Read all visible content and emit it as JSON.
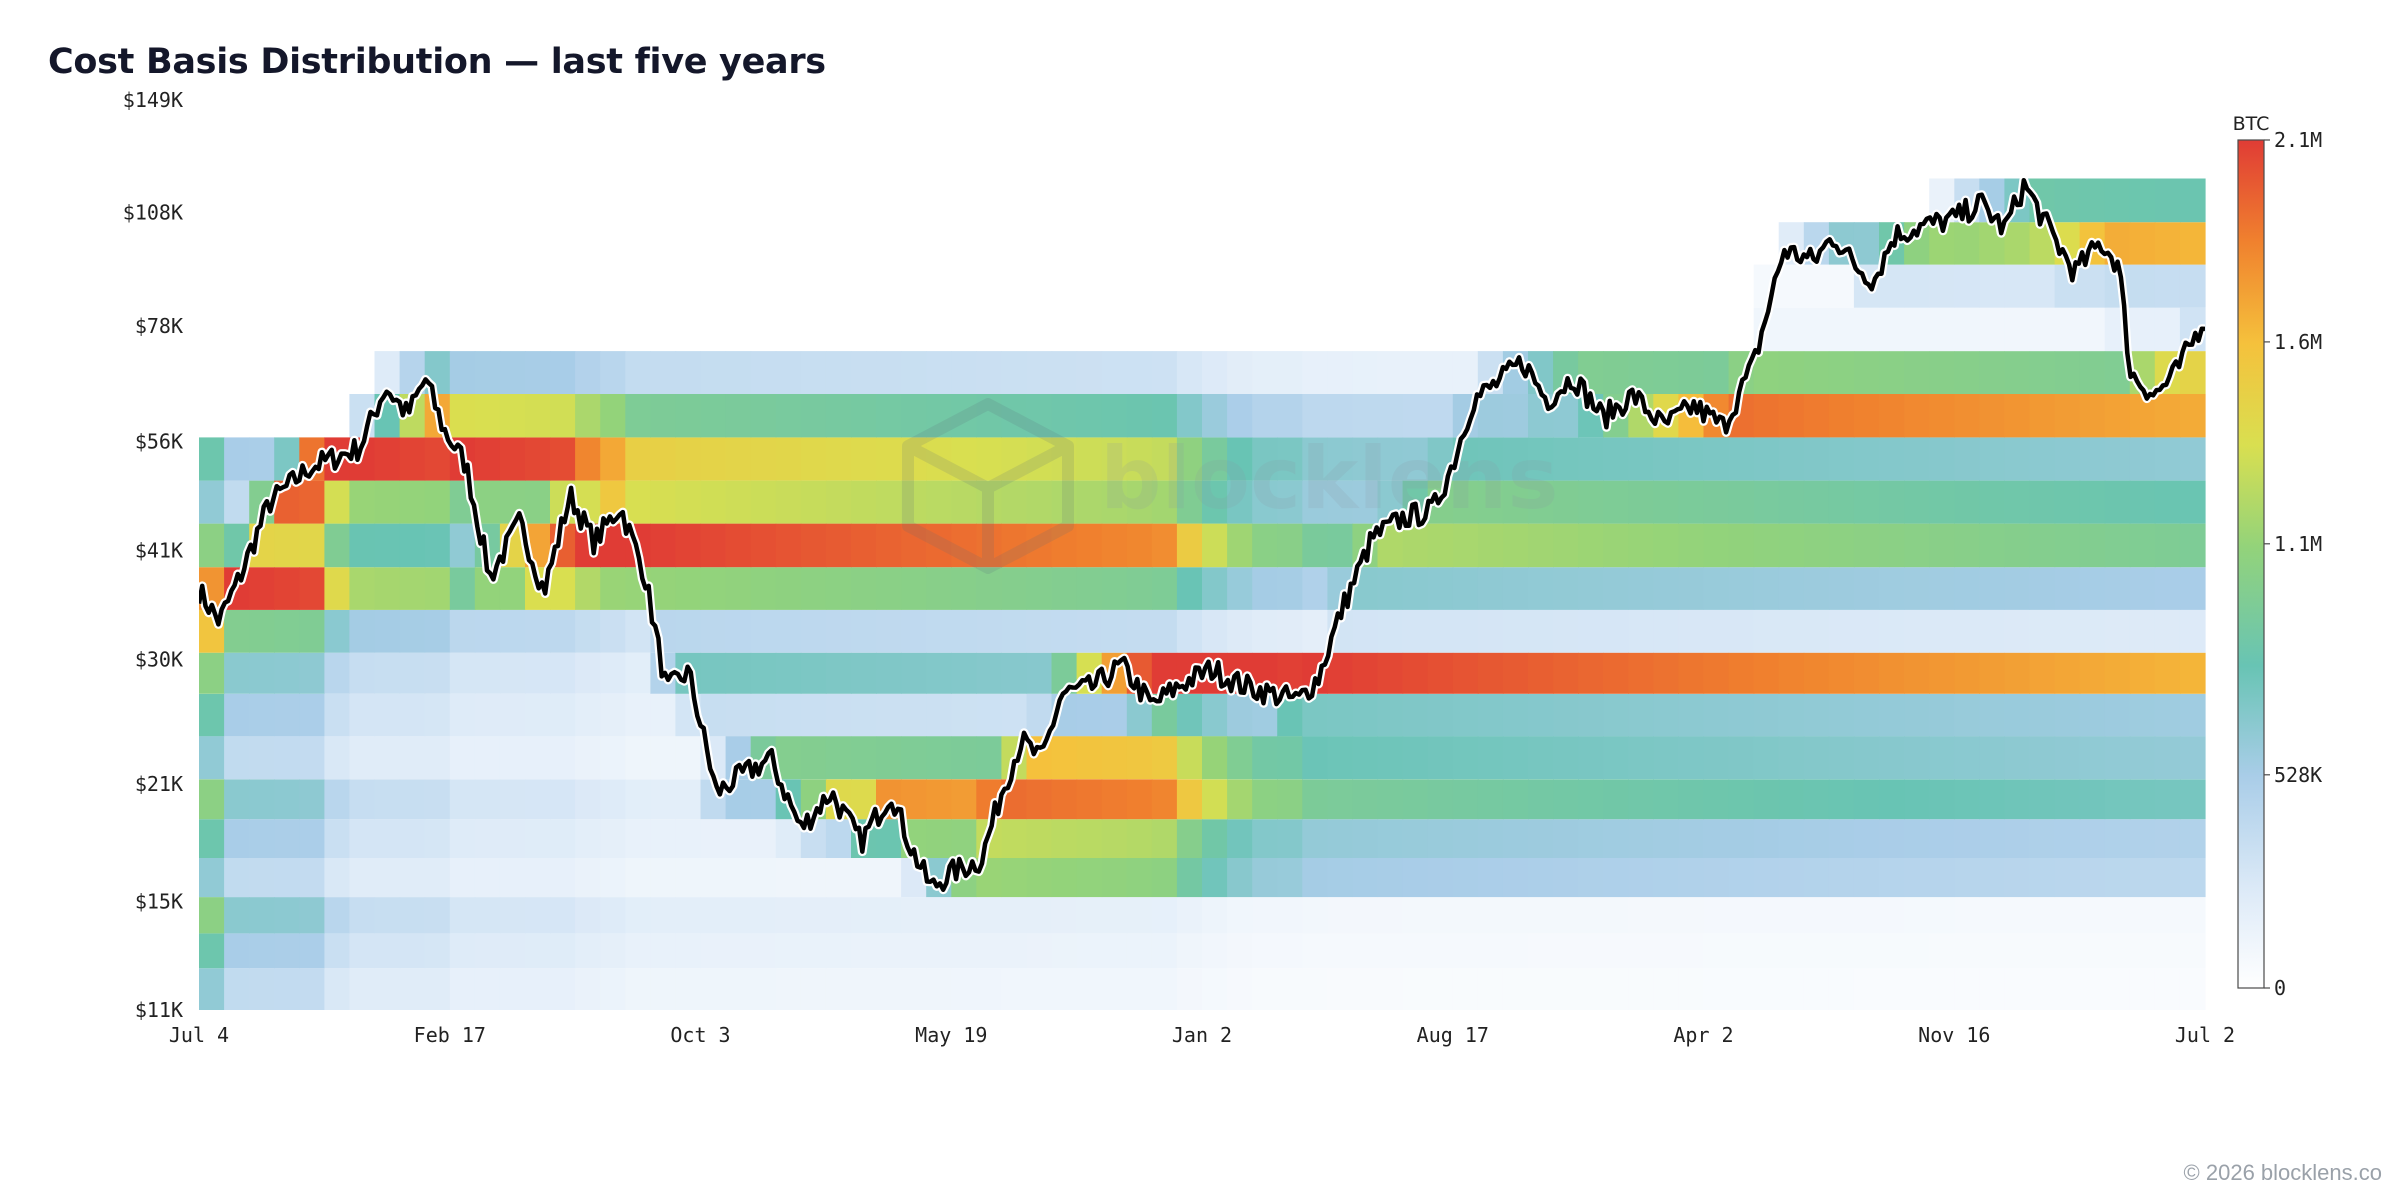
{
  "title": "Cost Basis Distribution — last five years",
  "copyright": "© 2026 blocklens.co",
  "watermark": "blocklens",
  "chart_data": {
    "type": "heatmap",
    "title": "Cost Basis Distribution — last five years",
    "y_scale": "log",
    "y_ticks": [
      "$149K",
      "$108K",
      "$78K",
      "$56K",
      "$41K",
      "$30K",
      "$21K",
      "$15K",
      "$11K"
    ],
    "y_tick_values": [
      149000,
      108000,
      78000,
      56000,
      41000,
      30000,
      21000,
      15000,
      11000
    ],
    "x_ticks": [
      "Jul 4",
      "Feb 17",
      "Oct 3",
      "May 19",
      "Jan 2",
      "Aug 17",
      "Apr 2",
      "Nov 16",
      "Jul 2"
    ],
    "colorbar": {
      "label": "BTC",
      "ticks": [
        "2.1M",
        "1.6M",
        "1.1M",
        "528K",
        "0"
      ],
      "tick_values": [
        2100000,
        1600000,
        1100000,
        528000,
        0
      ],
      "max": 2100000
    },
    "price_bins": [
      [
        11000,
        12400
      ],
      [
        12400,
        13700
      ],
      [
        13700,
        15200
      ],
      [
        15200,
        17000
      ],
      [
        17000,
        19000
      ],
      [
        19000,
        21300
      ],
      [
        21300,
        24100
      ],
      [
        24100,
        27200
      ],
      [
        27200,
        30600
      ],
      [
        30600,
        34600
      ],
      [
        34600,
        39100
      ],
      [
        39100,
        44300
      ],
      [
        44300,
        50100
      ],
      [
        50100,
        56700
      ],
      [
        56700,
        64200
      ],
      [
        64200,
        72600
      ],
      [
        72600,
        82200
      ],
      [
        82200,
        93000
      ],
      [
        93000,
        105000
      ],
      [
        105000,
        119000
      ],
      [
        119000,
        134000
      ]
    ],
    "price_series": {
      "name": "",
      "color": "#000000",
      "points": [
        [
          0.0,
          36500
        ],
        [
          0.01,
          33500
        ],
        [
          0.02,
          37800
        ],
        [
          0.035,
          47000
        ],
        [
          0.055,
          52000
        ],
        [
          0.08,
          55000
        ],
        [
          0.093,
          65500
        ],
        [
          0.104,
          60500
        ],
        [
          0.113,
          67000
        ],
        [
          0.122,
          58000
        ],
        [
          0.133,
          52500
        ],
        [
          0.145,
          38000
        ],
        [
          0.16,
          44500
        ],
        [
          0.172,
          36500
        ],
        [
          0.185,
          48000
        ],
        [
          0.197,
          42000
        ],
        [
          0.21,
          46500
        ],
        [
          0.222,
          38500
        ],
        [
          0.233,
          27500
        ],
        [
          0.244,
          29000
        ],
        [
          0.25,
          25000
        ],
        [
          0.258,
          20500
        ],
        [
          0.27,
          21500
        ],
        [
          0.285,
          22600
        ],
        [
          0.3,
          18500
        ],
        [
          0.315,
          20500
        ],
        [
          0.33,
          17800
        ],
        [
          0.345,
          20500
        ],
        [
          0.355,
          17500
        ],
        [
          0.365,
          15600
        ],
        [
          0.375,
          16300
        ],
        [
          0.39,
          16900
        ],
        [
          0.4,
          20500
        ],
        [
          0.41,
          23800
        ],
        [
          0.42,
          22500
        ],
        [
          0.43,
          27200
        ],
        [
          0.445,
          27700
        ],
        [
          0.46,
          29500
        ],
        [
          0.475,
          26300
        ],
        [
          0.49,
          28000
        ],
        [
          0.505,
          29200
        ],
        [
          0.52,
          27900
        ],
        [
          0.535,
          27200
        ],
        [
          0.548,
          26700
        ],
        [
          0.558,
          28500
        ],
        [
          0.57,
          34800
        ],
        [
          0.585,
          42500
        ],
        [
          0.6,
          45000
        ],
        [
          0.615,
          46000
        ],
        [
          0.625,
          52500
        ],
        [
          0.635,
          63000
        ],
        [
          0.648,
          66500
        ],
        [
          0.66,
          70500
        ],
        [
          0.672,
          63000
        ],
        [
          0.685,
          67500
        ],
        [
          0.7,
          60000
        ],
        [
          0.715,
          64000
        ],
        [
          0.73,
          58500
        ],
        [
          0.745,
          62000
        ],
        [
          0.76,
          58500
        ],
        [
          0.775,
          70000
        ],
        [
          0.79,
          97000
        ],
        [
          0.805,
          94000
        ],
        [
          0.815,
          101000
        ],
        [
          0.825,
          93000
        ],
        [
          0.835,
          89000
        ],
        [
          0.845,
          101000
        ],
        [
          0.86,
          104000
        ],
        [
          0.875,
          106000
        ],
        [
          0.888,
          111000
        ],
        [
          0.9,
          103000
        ],
        [
          0.91,
          117000
        ],
        [
          0.922,
          103000
        ],
        [
          0.935,
          91000
        ],
        [
          0.948,
          99000
        ],
        [
          0.957,
          93000
        ],
        [
          0.963,
          68000
        ],
        [
          0.975,
          64000
        ],
        [
          0.985,
          68000
        ],
        [
          0.993,
          74000
        ],
        [
          1.0,
          80000
        ]
      ]
    }
  }
}
